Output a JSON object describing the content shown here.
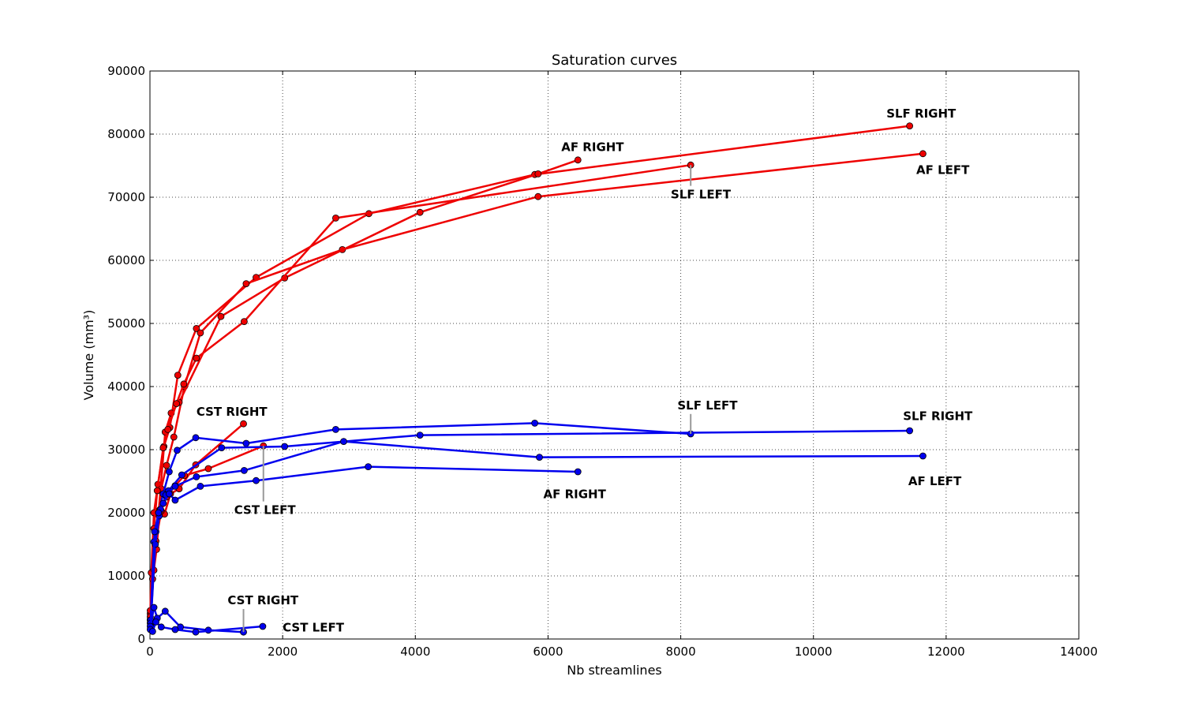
{
  "chart_data": {
    "type": "line",
    "title": "Saturation curves",
    "xlabel": "Nb streamlines",
    "ylabel": "Volume (mm³)",
    "xlim": [
      0,
      14000
    ],
    "ylim": [
      0,
      90000
    ],
    "xticks": [
      0,
      2000,
      4000,
      6000,
      8000,
      10000,
      12000,
      14000
    ],
    "yticks": [
      0,
      10000,
      20000,
      30000,
      40000,
      50000,
      60000,
      70000,
      80000,
      90000
    ],
    "xtick_labels": [
      "0",
      "2000",
      "4000",
      "6000",
      "8000",
      "10000",
      "12000",
      "14000"
    ],
    "ytick_labels": [
      "0",
      "10000",
      "20000",
      "30000",
      "40000",
      "50000",
      "60000",
      "70000",
      "80000",
      "90000"
    ],
    "grid": true,
    "colors": {
      "red": "#ee0000",
      "blue": "#0000ee",
      "annot_line": "#999999"
    },
    "series": [
      {
        "color": "red",
        "label": "SLF RIGHT",
        "x": [
          5,
          20,
          60,
          120,
          210,
          300,
          420,
          700,
          1600,
          3300,
          5800,
          11450
        ],
        "y": [
          4000,
          10500,
          20000,
          24500,
          30500,
          33500,
          41800,
          49200,
          57300,
          67400,
          73600,
          81300
        ]
      },
      {
        "color": "red",
        "label": "AF LEFT",
        "x": [
          5,
          40,
          100,
          170,
          250,
          360,
          520,
          760,
          1450,
          2900,
          5850,
          11650
        ],
        "y": [
          3000,
          9500,
          14200,
          23800,
          27500,
          32000,
          40000,
          48500,
          56300,
          61700,
          70100,
          76900
        ]
      },
      {
        "color": "red",
        "label": "AF RIGHT",
        "x": [
          5,
          60,
          130,
          230,
          320,
          440,
          1070,
          2030,
          4070,
          5850,
          6450
        ],
        "y": [
          4500,
          10900,
          20000,
          32800,
          35800,
          37500,
          51100,
          57200,
          67600,
          73700,
          75900
        ]
      },
      {
        "color": "red",
        "label": "SLF LEFT",
        "x": [
          5,
          60,
          110,
          200,
          270,
          400,
          510,
          700,
          1420,
          2800,
          8150
        ],
        "y": [
          3500,
          17500,
          23500,
          30300,
          33200,
          37300,
          40400,
          44500,
          50300,
          66700,
          75100
        ]
      },
      {
        "color": "red",
        "label": "CST RIGHT",
        "x": [
          5,
          80,
          150,
          220,
          310,
          440,
          690,
          1410
        ],
        "y": [
          2500,
          15000,
          20500,
          19800,
          23000,
          23800,
          27600,
          34100
        ]
      },
      {
        "color": "red",
        "label": "CST LEFT",
        "x": [
          5,
          90,
          170,
          250,
          380,
          520,
          880,
          1710
        ],
        "y": [
          3000,
          15500,
          20300,
          22500,
          24300,
          25900,
          27000,
          30600
        ]
      },
      {
        "color": "blue",
        "label": "SLF LEFT",
        "x": [
          10,
          60,
          130,
          200,
          290,
          410,
          690,
          1450,
          2800,
          5800,
          8150
        ],
        "y": [
          3000,
          15400,
          20000,
          23000,
          26500,
          29900,
          31900,
          31000,
          33200,
          34200,
          32500
        ]
      },
      {
        "color": "blue",
        "label": "SLF RIGHT",
        "x": [
          10,
          90,
          160,
          280,
          480,
          1080,
          2030,
          4070,
          11450
        ],
        "y": [
          2500,
          17000,
          20500,
          23500,
          26000,
          30300,
          30500,
          32300,
          33000
        ]
      },
      {
        "color": "blue",
        "label": "AF LEFT",
        "x": [
          10,
          80,
          140,
          240,
          380,
          700,
          1420,
          2920,
          5870,
          11650
        ],
        "y": [
          2000,
          15000,
          19500,
          22800,
          24200,
          25700,
          26700,
          31300,
          28800,
          29000
        ]
      },
      {
        "color": "blue",
        "label": "AF RIGHT",
        "x": [
          10,
          70,
          130,
          200,
          290,
          380,
          760,
          1600,
          3290,
          6450
        ],
        "y": [
          2000,
          17000,
          20000,
          21500,
          23000,
          22000,
          24200,
          25100,
          27300,
          26500
        ]
      },
      {
        "color": "blue",
        "label": "CST RIGHT",
        "x": [
          5,
          60,
          110,
          230,
          460,
          880,
          1410
        ],
        "y": [
          2000,
          5000,
          3300,
          4400,
          1900,
          1400,
          1100
        ]
      },
      {
        "color": "blue",
        "label": "CST LEFT",
        "x": [
          5,
          40,
          90,
          170,
          380,
          690,
          1700
        ],
        "y": [
          1500,
          1200,
          2700,
          1900,
          1500,
          1100,
          2000
        ]
      }
    ],
    "annotations": [
      {
        "text": "SLF RIGHT",
        "x": 11100,
        "y": 82600,
        "color": "red"
      },
      {
        "text": "AF RIGHT",
        "x": 6200,
        "y": 77300,
        "color": "red"
      },
      {
        "text": "AF LEFT",
        "x": 11550,
        "y": 73700,
        "color": "red"
      },
      {
        "text": "SLF LEFT",
        "x": 7850,
        "y": 69800,
        "color": "red",
        "pointer": [
          8150,
          75100
        ]
      },
      {
        "text": "CST RIGHT",
        "x": 700,
        "y": 35400,
        "color": "red"
      },
      {
        "text": "SLF LEFT",
        "x": 7950,
        "y": 36400,
        "color": "blue",
        "pointer": [
          8150,
          32500
        ]
      },
      {
        "text": "SLF RIGHT",
        "x": 11350,
        "y": 34700,
        "color": "blue"
      },
      {
        "text": "AF LEFT",
        "x": 11430,
        "y": 24400,
        "color": "blue"
      },
      {
        "text": "AF RIGHT",
        "x": 5930,
        "y": 22300,
        "color": "blue"
      },
      {
        "text": "CST LEFT",
        "x": 1270,
        "y": 19800,
        "color": "blue",
        "pointer": [
          1710,
          30600
        ]
      },
      {
        "text": "CST RIGHT",
        "x": 1170,
        "y": 5500,
        "color": "blue",
        "pointer": [
          1410,
          1100
        ]
      },
      {
        "text": "CST LEFT",
        "x": 2000,
        "y": 1200,
        "color": "blue"
      }
    ]
  }
}
